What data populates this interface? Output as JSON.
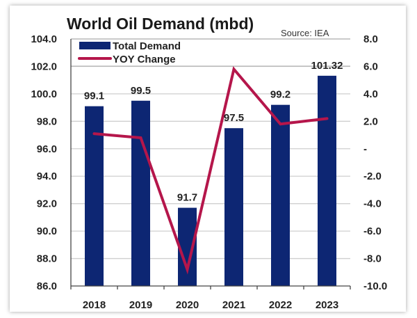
{
  "chart_data": {
    "type": "bar+line",
    "title": "World Oil Demand (mbd)",
    "source": "Source: IEA",
    "categories": [
      "2018",
      "2019",
      "2020",
      "2021",
      "2022",
      "2023"
    ],
    "series": [
      {
        "name": "Total Demand",
        "type": "bar",
        "axis": "left",
        "color": "#0d2673",
        "values": [
          99.1,
          99.5,
          91.7,
          97.5,
          99.2,
          101.32
        ],
        "labels": [
          "99.1",
          "99.5",
          "91.7",
          "97.5",
          "99.2",
          "101.32"
        ]
      },
      {
        "name": "YOY Change",
        "type": "line",
        "axis": "right",
        "color": "#b5164b",
        "values": [
          1.1,
          0.8,
          -8.8,
          5.8,
          1.8,
          2.2
        ]
      }
    ],
    "left_axis": {
      "ylim": [
        86.0,
        104.0
      ],
      "ticks": [
        "104.0",
        "102.0",
        "100.0",
        "98.0",
        "96.0",
        "94.0",
        "92.0",
        "90.0",
        "88.0",
        "86.0"
      ]
    },
    "right_axis": {
      "ylim": [
        -10.0,
        8.0
      ],
      "ticks": [
        "8.0",
        "6.0",
        "4.0",
        "2.0",
        "-",
        "-2.0",
        "-4.0",
        "-6.0",
        "-8.0",
        "-10.0"
      ]
    },
    "grid": true,
    "legend": "top-left"
  }
}
